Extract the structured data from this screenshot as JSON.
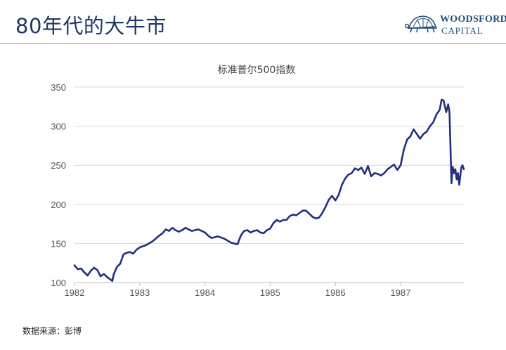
{
  "header": {
    "title": "80年代的大牛市",
    "logo_name": "WOODSFORD",
    "logo_sub": "CAPITAL"
  },
  "source_note": "数据来源：彭博",
  "chart_data": {
    "type": "line",
    "title": "标准普尔500指数",
    "xlabel": "",
    "ylabel": "",
    "xlim": [
      1982.0,
      1987.97
    ],
    "ylim": [
      100,
      350
    ],
    "yticks": [
      100,
      150,
      200,
      250,
      300,
      350
    ],
    "xticks": [
      1982,
      1983,
      1984,
      1985,
      1986,
      1987
    ],
    "xtick_labels": [
      "1982",
      "1983",
      "1984",
      "1985",
      "1986",
      "1987"
    ],
    "grid": "horizontal",
    "series": [
      {
        "name": "",
        "color": "#22307e",
        "x": [
          1982.0,
          1982.05,
          1982.1,
          1982.15,
          1982.2,
          1982.25,
          1982.3,
          1982.35,
          1982.4,
          1982.45,
          1982.5,
          1982.55,
          1982.58,
          1982.6,
          1982.65,
          1982.7,
          1982.75,
          1982.8,
          1982.85,
          1982.9,
          1982.95,
          1983.0,
          1983.1,
          1983.2,
          1983.3,
          1983.35,
          1983.4,
          1983.45,
          1983.5,
          1983.55,
          1983.6,
          1983.65,
          1983.7,
          1983.75,
          1983.8,
          1983.85,
          1983.9,
          1983.95,
          1984.0,
          1984.05,
          1984.1,
          1984.15,
          1984.2,
          1984.3,
          1984.4,
          1984.5,
          1984.55,
          1984.6,
          1984.65,
          1984.7,
          1984.75,
          1984.8,
          1984.85,
          1984.9,
          1984.95,
          1985.0,
          1985.05,
          1985.1,
          1985.15,
          1985.2,
          1985.25,
          1985.3,
          1985.35,
          1985.4,
          1985.45,
          1985.5,
          1985.55,
          1985.6,
          1985.65,
          1985.7,
          1985.75,
          1985.8,
          1985.85,
          1985.9,
          1985.95,
          1986.0,
          1986.05,
          1986.1,
          1986.15,
          1986.2,
          1986.25,
          1986.3,
          1986.35,
          1986.4,
          1986.45,
          1986.5,
          1986.55,
          1986.6,
          1986.65,
          1986.7,
          1986.75,
          1986.8,
          1986.85,
          1986.9,
          1986.95,
          1987.0,
          1987.05,
          1987.1,
          1987.15,
          1987.2,
          1987.25,
          1987.3,
          1987.35,
          1987.4,
          1987.45,
          1987.5,
          1987.55,
          1987.6,
          1987.63,
          1987.66,
          1987.7,
          1987.73,
          1987.75,
          1987.78,
          1987.8,
          1987.82,
          1987.84,
          1987.86,
          1987.88,
          1987.9,
          1987.93,
          1987.95,
          1987.97
        ],
        "y": [
          122,
          117,
          118,
          113,
          109,
          115,
          119,
          116,
          108,
          111,
          107,
          104,
          102,
          110,
          120,
          124,
          136,
          138,
          139,
          137,
          142,
          145,
          148,
          153,
          160,
          163,
          168,
          166,
          170,
          167,
          165,
          167,
          170,
          168,
          166,
          167,
          168,
          166,
          164,
          160,
          157,
          158,
          159,
          156,
          151,
          149,
          160,
          166,
          167,
          164,
          166,
          167,
          164,
          163,
          167,
          169,
          176,
          180,
          178,
          180,
          180,
          185,
          187,
          186,
          189,
          192,
          192,
          188,
          184,
          182,
          183,
          189,
          197,
          206,
          211,
          205,
          212,
          225,
          233,
          238,
          240,
          246,
          244,
          247,
          239,
          249,
          236,
          240,
          239,
          237,
          240,
          245,
          248,
          251,
          244,
          250,
          270,
          283,
          287,
          296,
          290,
          284,
          290,
          293,
          300,
          305,
          315,
          321,
          334,
          333,
          318,
          328,
          318,
          227,
          248,
          240,
          245,
          232,
          240,
          225,
          247,
          250,
          245
        ]
      }
    ]
  }
}
